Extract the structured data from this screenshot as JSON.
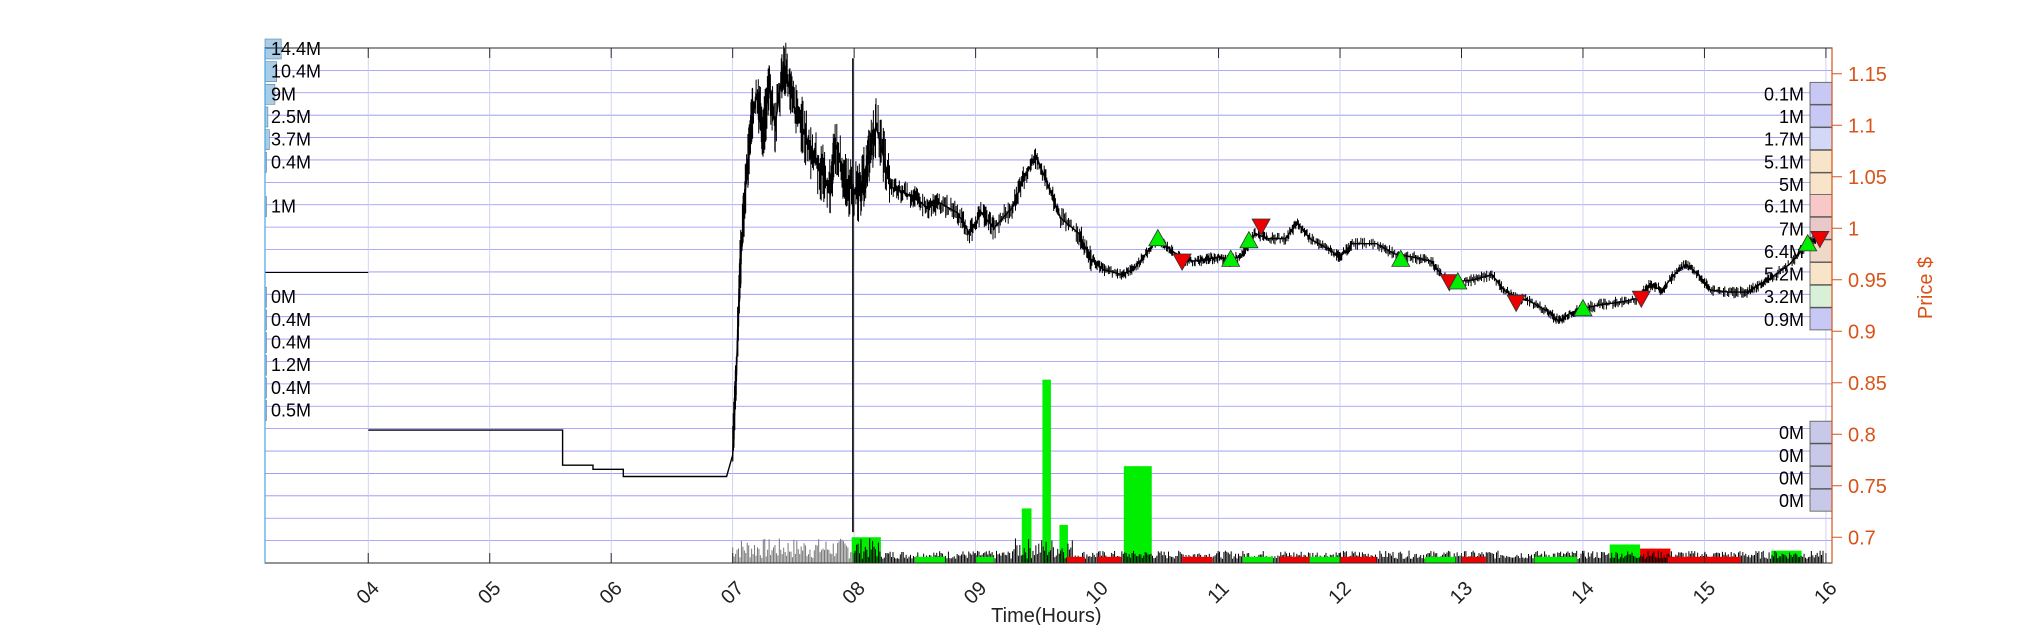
{
  "chart_data": {
    "type": "line",
    "xlabel": "Time(Hours)",
    "ylabel": "Price $",
    "xlim": [
      3.15,
      16.05
    ],
    "ylim": [
      0.675,
      1.175
    ],
    "x_ticks": [
      4,
      5,
      6,
      7,
      8,
      9,
      10,
      11,
      12,
      13,
      14,
      15,
      16
    ],
    "x_tick_labels": [
      "04",
      "05",
      "06",
      "07",
      "08",
      "09",
      "10",
      "11",
      "12",
      "13",
      "14",
      "15",
      "16"
    ],
    "y_ticks": [
      0.7,
      0.75,
      0.8,
      0.85,
      0.9,
      0.95,
      1.0,
      1.05,
      1.1,
      1.15
    ],
    "y_tick_labels": [
      "0.7",
      "0.75",
      "0.8",
      "0.85",
      "0.9",
      "0.95",
      "1",
      "1.05",
      "1.1",
      "1.15"
    ],
    "grid": true,
    "colors": {
      "axis_right": "#D95319",
      "grid_h": "#6b6bf0",
      "grid_v": "#c8c8f0",
      "left_bar": "#a8cde8",
      "buy": "#00ee00",
      "sell": "#ee0000",
      "price": "#000000"
    },
    "price_series": {
      "name": "",
      "points": [
        [
          4.0,
          0.804
        ],
        [
          5.6,
          0.804
        ],
        [
          5.6,
          0.77
        ],
        [
          5.85,
          0.77
        ],
        [
          5.85,
          0.766
        ],
        [
          6.1,
          0.766
        ],
        [
          6.1,
          0.759
        ],
        [
          6.95,
          0.759
        ],
        [
          7.0,
          0.78
        ],
        [
          7.03,
          0.86
        ],
        [
          7.06,
          0.96
        ],
        [
          7.1,
          1.03
        ],
        [
          7.15,
          1.1
        ],
        [
          7.2,
          1.13
        ],
        [
          7.25,
          1.09
        ],
        [
          7.3,
          1.14
        ],
        [
          7.35,
          1.1
        ],
        [
          7.42,
          1.16
        ],
        [
          7.5,
          1.12
        ],
        [
          7.6,
          1.09
        ],
        [
          7.7,
          1.06
        ],
        [
          7.8,
          1.04
        ],
        [
          7.85,
          1.08
        ],
        [
          7.95,
          1.04
        ],
        [
          8.05,
          1.035
        ],
        [
          8.12,
          1.07
        ],
        [
          8.18,
          1.1
        ],
        [
          8.3,
          1.04
        ],
        [
          8.4,
          1.035
        ],
        [
          8.5,
          1.03
        ],
        [
          8.6,
          1.02
        ],
        [
          8.7,
          1.025
        ],
        [
          8.85,
          1.015
        ],
        [
          8.95,
          0.995
        ],
        [
          9.05,
          1.015
        ],
        [
          9.15,
          1.0
        ],
        [
          9.3,
          1.02
        ],
        [
          9.4,
          1.05
        ],
        [
          9.5,
          1.07
        ],
        [
          9.6,
          1.04
        ],
        [
          9.7,
          1.01
        ],
        [
          9.85,
          0.995
        ],
        [
          9.95,
          0.97
        ],
        [
          10.05,
          0.96
        ],
        [
          10.2,
          0.955
        ],
        [
          10.3,
          0.96
        ],
        [
          10.4,
          0.975
        ],
        [
          10.5,
          0.99
        ],
        [
          10.6,
          0.98
        ],
        [
          10.7,
          0.97
        ],
        [
          10.8,
          0.968
        ],
        [
          10.9,
          0.97
        ],
        [
          11.0,
          0.972
        ],
        [
          11.1,
          0.968
        ],
        [
          11.2,
          0.975
        ],
        [
          11.3,
          0.995
        ],
        [
          11.4,
          0.99
        ],
        [
          11.55,
          0.99
        ],
        [
          11.65,
          1.005
        ],
        [
          11.75,
          0.99
        ],
        [
          11.9,
          0.98
        ],
        [
          12.0,
          0.972
        ],
        [
          12.1,
          0.985
        ],
        [
          12.3,
          0.985
        ],
        [
          12.45,
          0.975
        ],
        [
          12.6,
          0.972
        ],
        [
          12.75,
          0.968
        ],
        [
          12.85,
          0.953
        ],
        [
          12.95,
          0.948
        ],
        [
          13.1,
          0.95
        ],
        [
          13.25,
          0.955
        ],
        [
          13.35,
          0.94
        ],
        [
          13.45,
          0.932
        ],
        [
          13.55,
          0.93
        ],
        [
          13.7,
          0.92
        ],
        [
          13.8,
          0.91
        ],
        [
          13.9,
          0.918
        ],
        [
          14.0,
          0.922
        ],
        [
          14.15,
          0.926
        ],
        [
          14.3,
          0.928
        ],
        [
          14.45,
          0.932
        ],
        [
          14.55,
          0.945
        ],
        [
          14.65,
          0.94
        ],
        [
          14.75,
          0.955
        ],
        [
          14.85,
          0.965
        ],
        [
          14.95,
          0.955
        ],
        [
          15.05,
          0.94
        ],
        [
          15.2,
          0.938
        ],
        [
          15.35,
          0.938
        ],
        [
          15.45,
          0.945
        ],
        [
          15.55,
          0.952
        ],
        [
          15.7,
          0.965
        ],
        [
          15.85,
          0.985
        ],
        [
          15.95,
          0.99
        ]
      ]
    },
    "spike_at_8": {
      "x": 7.99,
      "ymin": 0.705,
      "ymax": 1.165
    },
    "trade_markers": [
      {
        "side": "buy",
        "x": 10.5,
        "y": 0.99
      },
      {
        "side": "sell",
        "x": 10.7,
        "y": 0.968
      },
      {
        "side": "buy",
        "x": 11.1,
        "y": 0.97
      },
      {
        "side": "buy",
        "x": 11.25,
        "y": 0.988
      },
      {
        "side": "sell",
        "x": 11.35,
        "y": 1.002
      },
      {
        "side": "buy",
        "x": 12.5,
        "y": 0.97
      },
      {
        "side": "sell",
        "x": 12.9,
        "y": 0.948
      },
      {
        "side": "buy",
        "x": 12.97,
        "y": 0.948
      },
      {
        "side": "sell",
        "x": 13.45,
        "y": 0.928
      },
      {
        "side": "buy",
        "x": 14.0,
        "y": 0.922
      },
      {
        "side": "sell",
        "x": 14.48,
        "y": 0.932
      },
      {
        "side": "buy",
        "x": 15.85,
        "y": 0.985
      },
      {
        "side": "sell",
        "x": 15.95,
        "y": 0.99
      }
    ],
    "left_volume_labels": [
      {
        "label": "14.4M",
        "price": 1.175,
        "rel": 0.9
      },
      {
        "label": "10.4M",
        "price": 1.153,
        "rel": 0.65
      },
      {
        "label": "9M",
        "price": 1.131,
        "rel": 0.55
      },
      {
        "label": "2.5M",
        "price": 1.109,
        "rel": 0.16
      },
      {
        "label": "3.7M",
        "price": 1.087,
        "rel": 0.24
      },
      {
        "label": "0.4M",
        "price": 1.065,
        "rel": 0.02
      },
      {
        "label": "1M",
        "price": 1.022,
        "rel": 0.06
      },
      {
        "label": "0M",
        "price": 0.934,
        "rel": 0.0
      },
      {
        "label": "0.4M",
        "price": 0.912,
        "rel": 0.02
      },
      {
        "label": "0.4M",
        "price": 0.89,
        "rel": 0.02
      },
      {
        "label": "1.2M",
        "price": 0.868,
        "rel": 0.08
      },
      {
        "label": "0.4M",
        "price": 0.846,
        "rel": 0.02
      },
      {
        "label": "0.5M",
        "price": 0.824,
        "rel": 0.03
      }
    ],
    "right_volume_labels": [
      {
        "label": "0.1M",
        "price": 1.131,
        "fill": "#c8c8f5"
      },
      {
        "label": "1M",
        "price": 1.109,
        "fill": "#c8c8f5"
      },
      {
        "label": "1.7M",
        "price": 1.087,
        "fill": "#d2d8f5"
      },
      {
        "label": "5.1M",
        "price": 1.065,
        "fill": "#f8e4c8"
      },
      {
        "label": "5M",
        "price": 1.043,
        "fill": "#f8e4c8"
      },
      {
        "label": "6.1M",
        "price": 1.022,
        "fill": "#f8c8c8"
      },
      {
        "label": "7M",
        "price": 1.0,
        "fill": "#e8c8c8"
      },
      {
        "label": "6.4M",
        "price": 0.978,
        "fill": "#f0d8c8"
      },
      {
        "label": "5.2M",
        "price": 0.956,
        "fill": "#f8e4c8"
      },
      {
        "label": "3.2M",
        "price": 0.934,
        "fill": "#d8f0d8"
      },
      {
        "label": "0.9M",
        "price": 0.912,
        "fill": "#c8c8f5"
      },
      {
        "label": "0M",
        "price": 0.802,
        "fill": "#c8c8e8"
      },
      {
        "label": "0M",
        "price": 0.78,
        "fill": "#c8c8e8"
      },
      {
        "label": "0M",
        "price": 0.758,
        "fill": "#c8c8e8"
      },
      {
        "label": "0M",
        "price": 0.736,
        "fill": "#c8c8e8"
      }
    ],
    "volume_bars": [
      {
        "x0": 9.38,
        "x1": 9.46,
        "top": 0.728,
        "side": "buy"
      },
      {
        "x0": 9.55,
        "x1": 9.62,
        "top": 0.853,
        "side": "buy"
      },
      {
        "x0": 10.22,
        "x1": 10.45,
        "top": 0.769,
        "side": "buy"
      },
      {
        "x0": 7.98,
        "x1": 8.22,
        "top": 0.7,
        "side": "buy"
      },
      {
        "x0": 14.22,
        "x1": 14.47,
        "top": 0.693,
        "side": "buy"
      },
      {
        "x0": 14.47,
        "x1": 14.72,
        "top": 0.689,
        "side": "sell"
      },
      {
        "x0": 15.55,
        "x1": 15.8,
        "top": 0.687,
        "side": "buy"
      },
      {
        "x0": 9.69,
        "x1": 9.76,
        "top": 0.712,
        "side": "buy"
      }
    ]
  }
}
